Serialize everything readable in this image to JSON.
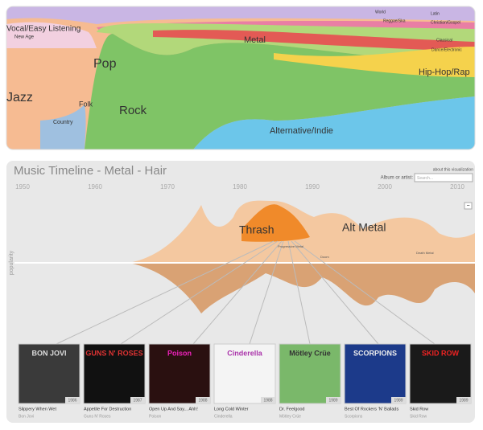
{
  "top_panel": {
    "genres": [
      "Vocal/Easy Listening",
      "New Age",
      "Jazz",
      "Pop",
      "Folk",
      "Country",
      "Rock",
      "Metal",
      "Alternative/Indie",
      "Hip-Hop/Rap",
      "World",
      "Reggae/Ska",
      "Latin",
      "Christian/Gospel",
      "Classical",
      "Dance/Electronic"
    ]
  },
  "bottom_panel": {
    "title": "Music Timeline - Metal - Hair",
    "about_link": "about this visualization",
    "search_label": "Album or artist:",
    "search_placeholder": "Search...",
    "collapse_button": "−",
    "y_axis_label": "popularity",
    "years": [
      "1950",
      "1960",
      "1970",
      "1980",
      "1990",
      "2000",
      "2010"
    ],
    "stream_labels": [
      "Thrash",
      "Alt Metal",
      "Progressive Metal",
      "Doom",
      "Death Metal"
    ],
    "albums": [
      {
        "title": "Slippery When Wet",
        "artist": "Bon Jovi",
        "year": "1986",
        "cover_text": "BON JOVI"
      },
      {
        "title": "Appetite For Destruction",
        "artist": "Guns N' Roses",
        "year": "1987",
        "cover_text": "GUNS N' ROSES"
      },
      {
        "title": "Open Up And Say... Ahh!",
        "artist": "Poison",
        "year": "1988",
        "cover_text": "Poison"
      },
      {
        "title": "Long Cold Winter",
        "artist": "Cinderella",
        "year": "1988",
        "cover_text": "Cinderella"
      },
      {
        "title": "Dr. Feelgood",
        "artist": "Mötley Crüe",
        "year": "1989",
        "cover_text": "Mötley Crüe"
      },
      {
        "title": "Best Of Rockers 'N' Ballads",
        "artist": "Scorpions",
        "year": "1989",
        "cover_text": "SCORPIONS"
      },
      {
        "title": "Skid Row",
        "artist": "Skid Row",
        "year": "1989",
        "cover_text": "SKID ROW"
      }
    ]
  }
}
